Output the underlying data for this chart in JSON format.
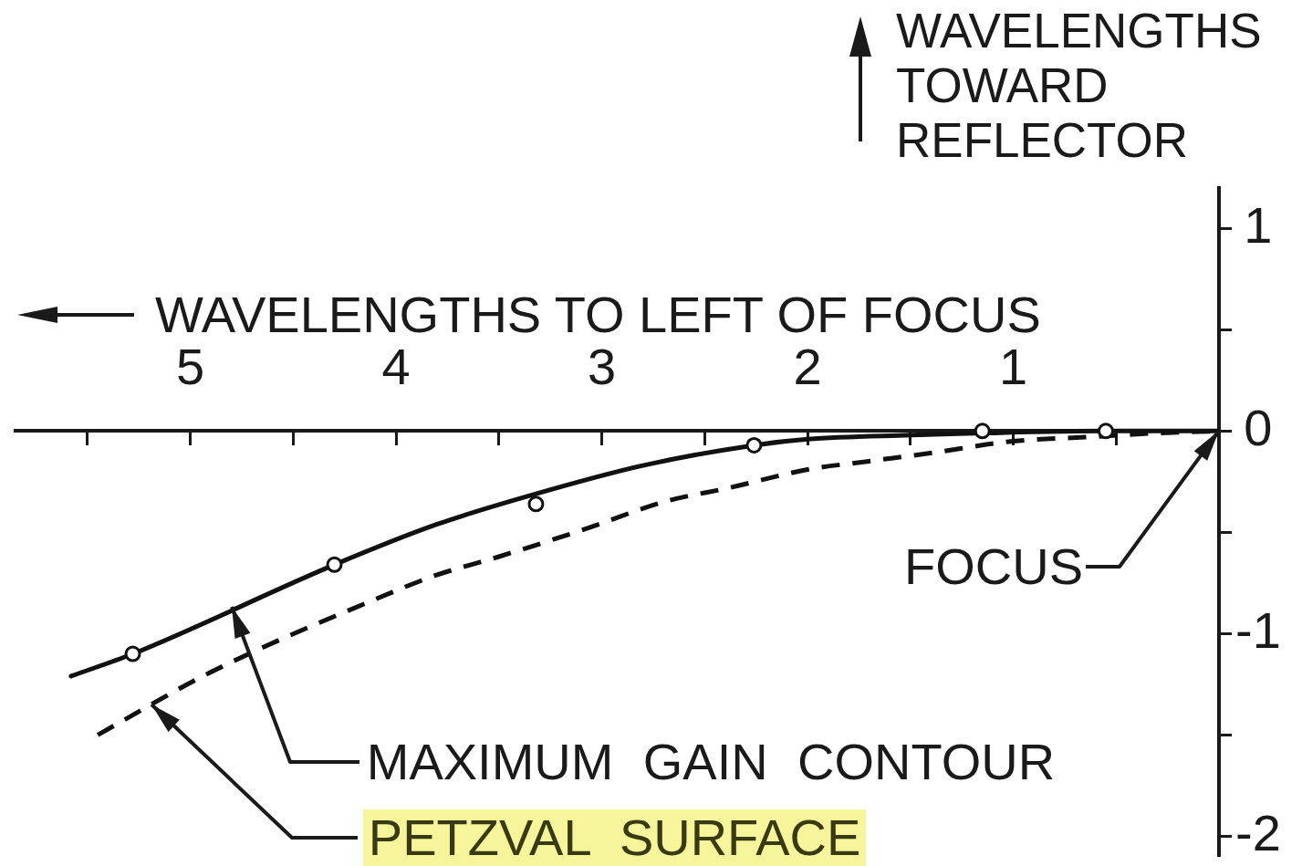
{
  "chart_data": {
    "type": "line",
    "xlabel": "WAVELENGTHS TO LEFT OF FOCUS",
    "ylabel": "WAVELENGTHS TOWARD REFLECTOR",
    "xlim": [
      5.85,
      0
    ],
    "xticks": [
      {
        "value": 5.5,
        "label": null
      },
      5,
      {
        "value": 4.5,
        "label": null
      },
      4,
      {
        "value": 3.5,
        "label": null
      },
      3,
      {
        "value": 2.5,
        "label": null
      },
      2,
      {
        "value": 1.5,
        "label": null
      },
      1,
      {
        "value": 0.5,
        "label": null
      }
    ],
    "ylim": [
      -2.1,
      1.2
    ],
    "yticks": [
      1,
      {
        "value": 0.5,
        "label": null
      },
      0,
      {
        "value": -0.5,
        "label": null
      },
      -1,
      {
        "value": -1.5,
        "label": null
      },
      -2
    ],
    "series": [
      {
        "type": "line",
        "color": "#111111",
        "line_style": "solid",
        "x": [
          5.58,
          5.28,
          4.3,
          3.8,
          3.32,
          2.8,
          2.26,
          2,
          1.5,
          1.15,
          0.55,
          0
        ],
        "values": [
          -1.21,
          -1.1,
          -0.66,
          -0.46,
          -0.31,
          -0.17,
          -0.07,
          -0.04,
          -0.02,
          -0.01,
          0,
          0
        ]
      },
      {
        "type": "line",
        "color": "#111111",
        "line_style": "dashed",
        "x": [
          5.45,
          4.9,
          4.1,
          3.8,
          3.5,
          3.07,
          2.7,
          2.38,
          2,
          1.71,
          1.41,
          1,
          0.65,
          0.3,
          0
        ],
        "values": [
          -1.5,
          -1.19,
          -0.83,
          -0.71,
          -0.62,
          -0.48,
          -0.35,
          -0.28,
          -0.19,
          -0.15,
          -0.11,
          -0.05,
          -0.03,
          -0.01,
          0
        ]
      },
      {
        "type": "scatter",
        "color": "#111111",
        "marker": "circle",
        "x": [
          5.28,
          4.3,
          3.32,
          2.26,
          1.15,
          0.55
        ],
        "values": [
          -1.1,
          -0.66,
          -0.36,
          -0.07,
          0,
          0
        ]
      }
    ],
    "annotations": [
      {
        "text": "FOCUS",
        "x": 0,
        "y": 0
      },
      {
        "text": "MAXIMUM GAIN CONTOUR",
        "x": 4.8,
        "y": -0.87
      },
      {
        "text": "PETZVAL SURFACE",
        "x": 5.19,
        "y": -1.35
      }
    ]
  }
}
